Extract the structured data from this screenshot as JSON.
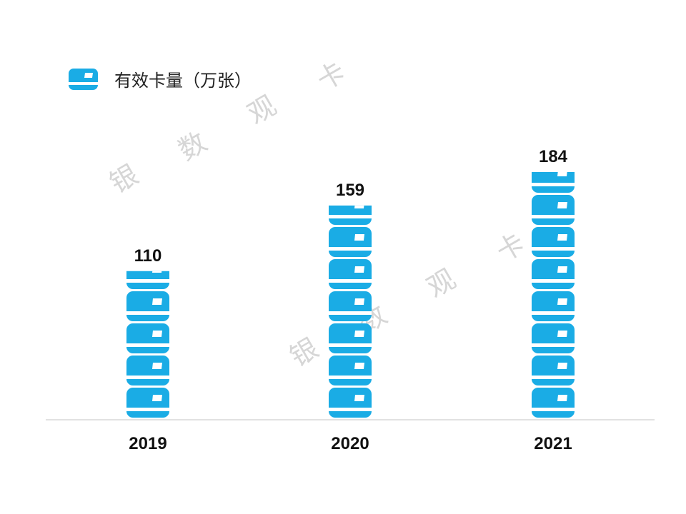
{
  "chart_data": {
    "type": "bar",
    "categories": [
      "2019",
      "2020",
      "2021"
    ],
    "series": [
      {
        "name": "有效卡量（万张）",
        "values": [
          110,
          159,
          184
        ]
      }
    ],
    "value_labels": [
      "110",
      "159",
      "184"
    ],
    "ylim": [
      0,
      200
    ],
    "grid": false,
    "legend_position": "top-left",
    "bar_style": "stacked bank-card icons"
  },
  "legend": {
    "label": "有效卡量（万张）",
    "icon": "bank-card-icon"
  },
  "watermark": {
    "chars": [
      "银",
      "数",
      "观",
      "卡"
    ]
  },
  "colors": {
    "bar": "#1aace5",
    "axis": "#d9d9d9",
    "text": "#111111",
    "watermark": "#d6d6d6"
  }
}
